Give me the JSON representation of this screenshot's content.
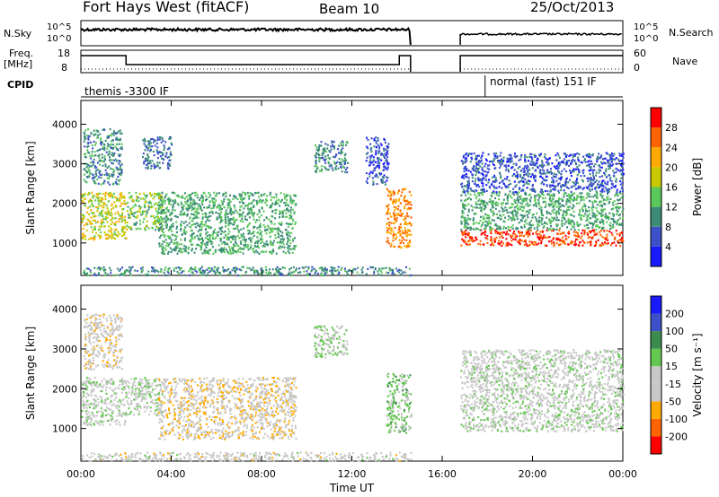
{
  "header": {
    "radar": "Fort Hays West (fitACF)",
    "beam": "Beam 10",
    "date": "25/Oct/2013"
  },
  "strips": {
    "nsky_label": "N.Sky",
    "nsky_ticks": [
      "10^5",
      "10^0"
    ],
    "nsearch_label": "N.Search",
    "nsearch_ticks": [
      "10^5",
      "10^0"
    ],
    "freq_label": "Freq.",
    "freq_unit": "[MHz]",
    "freq_ticks": [
      "18",
      "8"
    ],
    "nave_label": "Nave",
    "nave_ticks": [
      "60",
      "0"
    ],
    "cpid_label": "CPID",
    "cpid_modes": [
      {
        "label": "themis -3300 IF",
        "start": 0,
        "end": 17.5
      },
      {
        "label": "normal (fast) 151 IF",
        "start": 17.9,
        "end": 24
      }
    ]
  },
  "chart_data": [
    {
      "type": "heatmap",
      "title": "",
      "xlabel": "",
      "ylabel": "Slant Range [km]",
      "x_ticks": [
        "00:00",
        "04:00",
        "08:00",
        "12:00",
        "16:00",
        "20:00",
        "00:00"
      ],
      "xlim": [
        0,
        24
      ],
      "y_ticks": [
        "1000",
        "2000",
        "3000",
        "4000"
      ],
      "ylim": [
        180,
        4600
      ],
      "data_gap_hours": [
        14.6,
        16.8
      ],
      "colorbar": {
        "label": "Power [dB]",
        "ticks": [
          "4",
          "8",
          "12",
          "16",
          "20",
          "24",
          "28"
        ],
        "range": [
          0,
          32
        ],
        "colors": [
          "#1a1aff",
          "#3c50c8",
          "#3c8c78",
          "#5ac85a",
          "#c8c800",
          "#ffaa00",
          "#ff6400",
          "#ff0000"
        ]
      },
      "echo_regions": [
        {
          "t0": 0.0,
          "t1": 2.0,
          "r0": 1100,
          "r1": 2300,
          "value": 18
        },
        {
          "t0": 0.1,
          "t1": 1.8,
          "r0": 2500,
          "r1": 3900,
          "value": 10
        },
        {
          "t0": 2.0,
          "t1": 3.6,
          "r0": 1350,
          "r1": 2300,
          "value": 14
        },
        {
          "t0": 2.7,
          "t1": 4.0,
          "r0": 2900,
          "r1": 3700,
          "value": 8
        },
        {
          "t0": 3.4,
          "t1": 9.5,
          "r0": 750,
          "r1": 2300,
          "value": 12
        },
        {
          "t0": 10.3,
          "t1": 11.8,
          "r0": 2800,
          "r1": 3600,
          "value": 10
        },
        {
          "t0": 12.6,
          "t1": 13.6,
          "r0": 2500,
          "r1": 3700,
          "value": 6
        },
        {
          "t0": 13.5,
          "t1": 14.6,
          "r0": 900,
          "r1": 2400,
          "value": 24
        },
        {
          "t0": 16.8,
          "t1": 24.0,
          "r0": 950,
          "r1": 1350,
          "value": 28
        },
        {
          "t0": 16.8,
          "t1": 24.0,
          "r0": 1350,
          "r1": 2300,
          "value": 12
        },
        {
          "t0": 16.8,
          "t1": 24.0,
          "r0": 2300,
          "r1": 3300,
          "value": 6
        },
        {
          "t0": 0.0,
          "t1": 14.6,
          "r0": 200,
          "r1": 420,
          "value": 10
        }
      ]
    },
    {
      "type": "heatmap",
      "title": "",
      "xlabel": "Time UT",
      "ylabel": "Slant Range [km]",
      "x_ticks": [
        "00:00",
        "04:00",
        "08:00",
        "12:00",
        "16:00",
        "20:00",
        "00:00"
      ],
      "xlim": [
        0,
        24
      ],
      "y_ticks": [
        "1000",
        "2000",
        "3000",
        "4000"
      ],
      "ylim": [
        180,
        4600
      ],
      "data_gap_hours": [
        14.6,
        16.8
      ],
      "colorbar": {
        "label": "Velocity [m s⁻¹]",
        "ticks": [
          "200",
          "100",
          "50",
          "15",
          "-15",
          "-50",
          "-100",
          "-200"
        ],
        "range": [
          -250,
          250
        ],
        "colors": [
          "#ff0000",
          "#ff6400",
          "#ffaa00",
          "#c8c8c8",
          "#c8c8c8",
          "#64c850",
          "#3c8c50",
          "#3c50c8",
          "#1a1aff"
        ]
      },
      "echo_regions": [
        {
          "t0": 0.0,
          "t1": 2.0,
          "r0": 1100,
          "r1": 2300,
          "value": 0
        },
        {
          "t0": 0.1,
          "t1": 1.8,
          "r0": 2500,
          "r1": 3900,
          "value": -40
        },
        {
          "t0": 2.0,
          "t1": 3.6,
          "r0": 1350,
          "r1": 2300,
          "value": 0
        },
        {
          "t0": 3.4,
          "t1": 9.5,
          "r0": 750,
          "r1": 2300,
          "value": -60
        },
        {
          "t0": 10.3,
          "t1": 11.8,
          "r0": 2800,
          "r1": 3600,
          "value": 20
        },
        {
          "t0": 13.5,
          "t1": 14.6,
          "r0": 900,
          "r1": 2400,
          "value": 40
        },
        {
          "t0": 16.8,
          "t1": 24.0,
          "r0": 950,
          "r1": 1600,
          "value": 0
        },
        {
          "t0": 16.8,
          "t1": 24.0,
          "r0": 1600,
          "r1": 3000,
          "value": -10
        },
        {
          "t0": 0.0,
          "t1": 14.6,
          "r0": 200,
          "r1": 420,
          "value": -30
        }
      ]
    }
  ]
}
